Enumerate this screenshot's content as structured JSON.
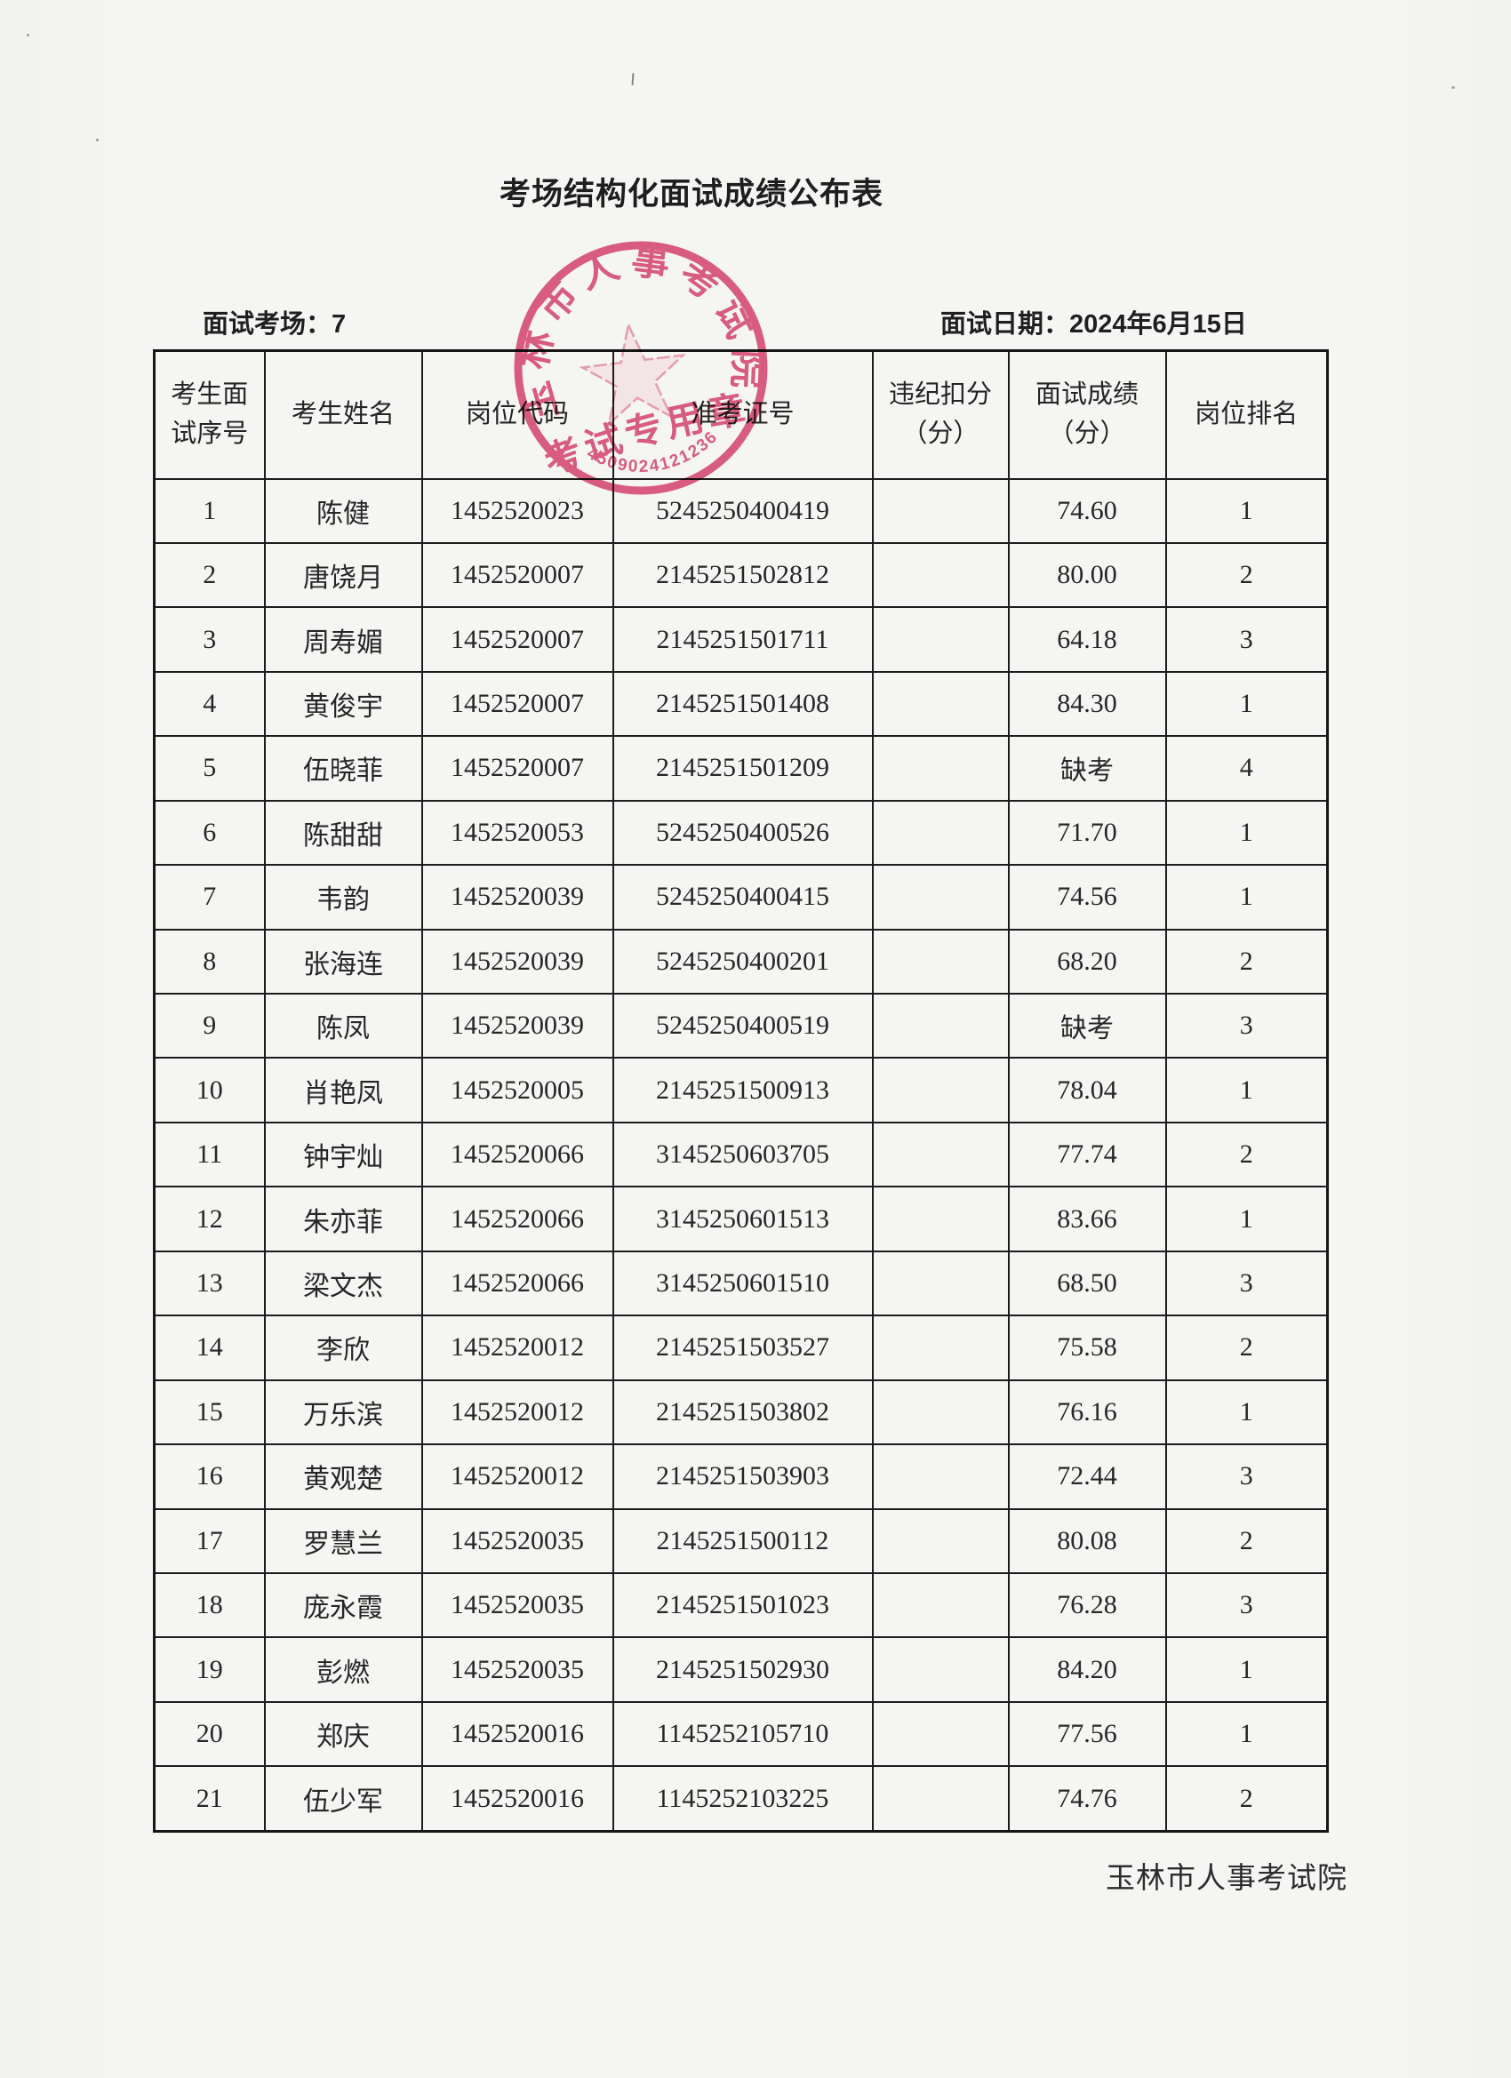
{
  "page": {
    "title": "考场结构化面试成绩公布表",
    "exam_room_label": "面试考场：",
    "exam_room_value": "7",
    "exam_date_label": "面试日期：",
    "exam_date_value": "2024年6月15日",
    "footer": "玉林市人事考试院"
  },
  "stamp": {
    "ring_text": "玉林市人事考试院",
    "center_text": "考试专用章",
    "serial": "4509024121236",
    "color": "#dd4a74"
  },
  "table": {
    "headers": [
      "考生面\n试序号",
      "考生姓名",
      "岗位代码",
      "准考证号",
      "违纪扣分\n（分）",
      "面试成绩\n（分）",
      "岗位排名"
    ],
    "rows": [
      [
        "1",
        "陈健",
        "1452520023",
        "5245250400419",
        "",
        "74.60",
        "1"
      ],
      [
        "2",
        "唐饶月",
        "1452520007",
        "2145251502812",
        "",
        "80.00",
        "2"
      ],
      [
        "3",
        "周寿媚",
        "1452520007",
        "2145251501711",
        "",
        "64.18",
        "3"
      ],
      [
        "4",
        "黄俊宇",
        "1452520007",
        "2145251501408",
        "",
        "84.30",
        "1"
      ],
      [
        "5",
        "伍晓菲",
        "1452520007",
        "2145251501209",
        "",
        "缺考",
        "4"
      ],
      [
        "6",
        "陈甜甜",
        "1452520053",
        "5245250400526",
        "",
        "71.70",
        "1"
      ],
      [
        "7",
        "韦韵",
        "1452520039",
        "5245250400415",
        "",
        "74.56",
        "1"
      ],
      [
        "8",
        "张海连",
        "1452520039",
        "5245250400201",
        "",
        "68.20",
        "2"
      ],
      [
        "9",
        "陈凤",
        "1452520039",
        "5245250400519",
        "",
        "缺考",
        "3"
      ],
      [
        "10",
        "肖艳凤",
        "1452520005",
        "2145251500913",
        "",
        "78.04",
        "1"
      ],
      [
        "11",
        "钟宇灿",
        "1452520066",
        "3145250603705",
        "",
        "77.74",
        "2"
      ],
      [
        "12",
        "朱亦菲",
        "1452520066",
        "3145250601513",
        "",
        "83.66",
        "1"
      ],
      [
        "13",
        "梁文杰",
        "1452520066",
        "3145250601510",
        "",
        "68.50",
        "3"
      ],
      [
        "14",
        "李欣",
        "1452520012",
        "2145251503527",
        "",
        "75.58",
        "2"
      ],
      [
        "15",
        "万乐滨",
        "1452520012",
        "2145251503802",
        "",
        "76.16",
        "1"
      ],
      [
        "16",
        "黄观楚",
        "1452520012",
        "2145251503903",
        "",
        "72.44",
        "3"
      ],
      [
        "17",
        "罗慧兰",
        "1452520035",
        "2145251500112",
        "",
        "80.08",
        "2"
      ],
      [
        "18",
        "庞永霞",
        "1452520035",
        "2145251501023",
        "",
        "76.28",
        "3"
      ],
      [
        "19",
        "彭燃",
        "1452520035",
        "2145251502930",
        "",
        "84.20",
        "1"
      ],
      [
        "20",
        "郑庆",
        "1452520016",
        "1145252105710",
        "",
        "77.56",
        "1"
      ],
      [
        "21",
        "伍少军",
        "1452520016",
        "1145252103225",
        "",
        "74.76",
        "2"
      ]
    ]
  }
}
